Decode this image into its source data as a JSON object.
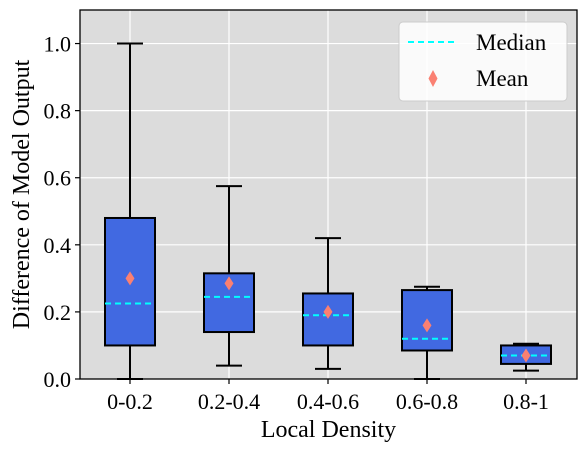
{
  "chart_data": {
    "type": "box",
    "categories": [
      "0-0.2",
      "0.2-0.4",
      "0.4-0.6",
      "0.6-0.8",
      "0.8-1"
    ],
    "boxes": [
      {
        "whisker_low": 0.0,
        "q1": 0.1,
        "median": 0.225,
        "q3": 0.48,
        "whisker_high": 1.0,
        "mean": 0.3
      },
      {
        "whisker_low": 0.04,
        "q1": 0.14,
        "median": 0.245,
        "q3": 0.315,
        "whisker_high": 0.575,
        "mean": 0.285
      },
      {
        "whisker_low": 0.03,
        "q1": 0.1,
        "median": 0.19,
        "q3": 0.255,
        "whisker_high": 0.42,
        "mean": 0.2
      },
      {
        "whisker_low": 0.0,
        "q1": 0.085,
        "median": 0.12,
        "q3": 0.265,
        "whisker_high": 0.275,
        "mean": 0.16
      },
      {
        "whisker_low": 0.025,
        "q1": 0.045,
        "median": 0.07,
        "q3": 0.1,
        "whisker_high": 0.105,
        "mean": 0.07
      }
    ],
    "xlabel": "Local Density",
    "ylabel": "Difference of Model Output",
    "ylim": [
      0.0,
      1.1
    ],
    "yticks": [
      "0.0",
      "0.2",
      "0.4",
      "0.6",
      "0.8",
      "1.0"
    ],
    "ytick_values": [
      0.0,
      0.2,
      0.4,
      0.6,
      0.8,
      1.0
    ],
    "grid": true,
    "legend": {
      "placement": "top-right",
      "entries": [
        {
          "label": "Median",
          "marker": "dashed-line",
          "color": "#00ffff"
        },
        {
          "label": "Mean",
          "marker": "diamond",
          "color": "#fa8072"
        }
      ]
    },
    "colors": {
      "box_fill": "#4169e1",
      "plot_bg": "#dcdcdc",
      "median": "#00ffff",
      "mean": "#fa8072"
    }
  }
}
